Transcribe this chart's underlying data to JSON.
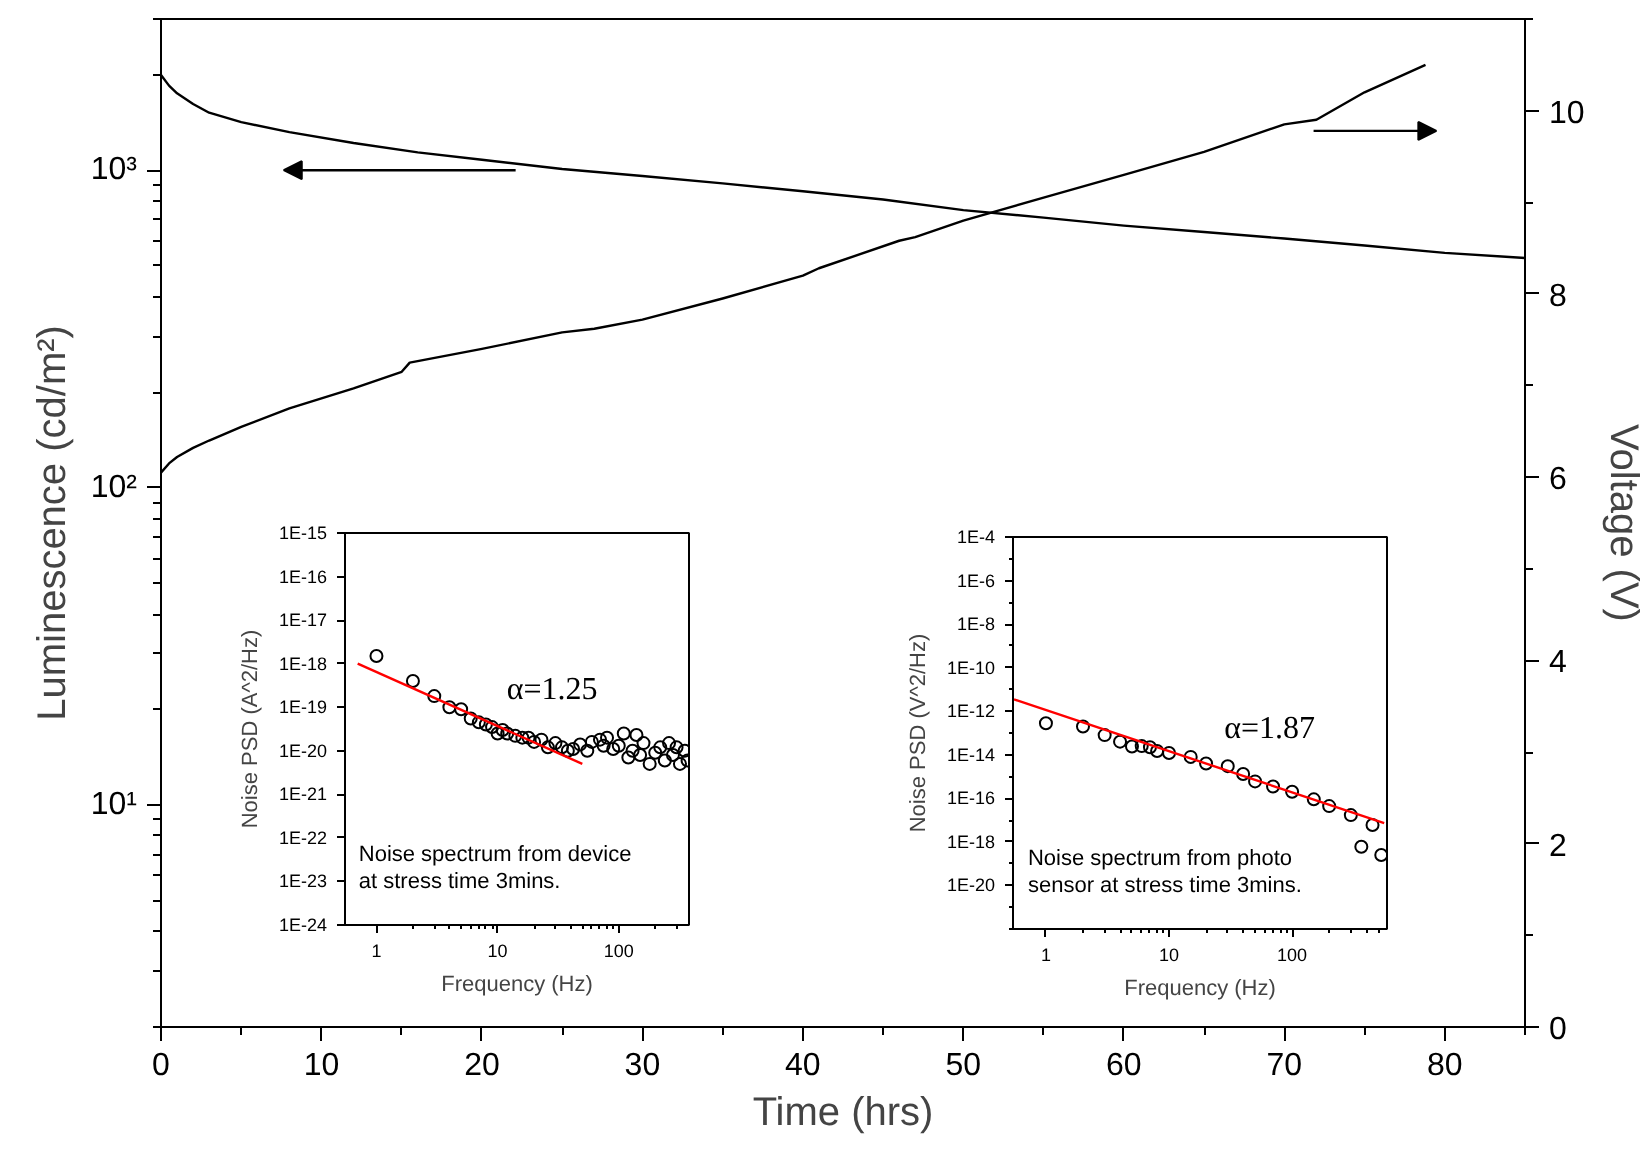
{
  "chart_data": [
    {
      "type": "line",
      "xlabel": "Time (hrs)",
      "ylabel": "Luminescence (cd/m²)",
      "y2label": "Voltage (V)",
      "log": "y",
      "xlim": [
        0,
        85
      ],
      "ylim": [
        2,
        3000
      ],
      "y2lim": [
        0,
        11
      ],
      "xticks": [
        0,
        {
          "value": 5,
          "label": null
        },
        10,
        {
          "value": 15,
          "label": null
        },
        20,
        {
          "value": 25,
          "label": null
        },
        30,
        {
          "value": 35,
          "label": null
        },
        40,
        {
          "value": 45,
          "label": null
        },
        50,
        {
          "value": 55,
          "label": null
        },
        60,
        {
          "value": 65,
          "label": null
        },
        70,
        {
          "value": 75,
          "label": null
        },
        80,
        {
          "value": 85,
          "label": null
        }
      ],
      "yticks": [
        {
          "value": 2,
          "label": null
        },
        {
          "value": 3,
          "label": null
        },
        {
          "value": 4,
          "label": null
        },
        {
          "value": 5,
          "label": null
        },
        {
          "value": 6,
          "label": null
        },
        {
          "value": 7,
          "label": null
        },
        {
          "value": 8,
          "label": null
        },
        {
          "value": 9,
          "label": null
        },
        {
          "value": 10,
          "label": "10¹"
        },
        {
          "value": 20,
          "label": null
        },
        {
          "value": 30,
          "label": null
        },
        {
          "value": 40,
          "label": null
        },
        {
          "value": 50,
          "label": null
        },
        {
          "value": 60,
          "label": null
        },
        {
          "value": 70,
          "label": null
        },
        {
          "value": 80,
          "label": null
        },
        {
          "value": 90,
          "label": null
        },
        {
          "value": 100,
          "label": "10²"
        },
        {
          "value": 200,
          "label": null
        },
        {
          "value": 300,
          "label": null
        },
        {
          "value": 400,
          "label": null
        },
        {
          "value": 500,
          "label": null
        },
        {
          "value": 600,
          "label": null
        },
        {
          "value": 700,
          "label": null
        },
        {
          "value": 800,
          "label": null
        },
        {
          "value": 900,
          "label": null
        },
        {
          "value": 1000,
          "label": "10³"
        },
        {
          "value": 2000,
          "label": null
        },
        {
          "value": 3000,
          "label": null
        }
      ],
      "y2ticks": [
        0,
        {
          "value": 1,
          "label": null
        },
        2,
        {
          "value": 3,
          "label": null
        },
        4,
        {
          "value": 5,
          "label": null
        },
        6,
        {
          "value": 7,
          "label": null
        },
        8,
        {
          "value": 9,
          "label": null
        },
        10,
        {
          "value": 11,
          "label": null
        }
      ],
      "grid": false,
      "series": [
        {
          "color": "#000000",
          "x": [
            0,
            0.5,
            1,
            2,
            3,
            5,
            8,
            12,
            16,
            20,
            25,
            30,
            35,
            40,
            45,
            50,
            55,
            60,
            65,
            70,
            75,
            80,
            85
          ],
          "values": [
            2000,
            1850,
            1750,
            1620,
            1520,
            1420,
            1320,
            1220,
            1140,
            1080,
            1010,
            960,
            910,
            860,
            810,
            750,
            710,
            670,
            640,
            610,
            580,
            550,
            530
          ]
        },
        {
          "color": "#000000",
          "axis": "y2",
          "x": [
            0,
            0.5,
            1,
            2,
            3,
            5,
            8,
            12,
            15,
            15.5,
            20,
            25,
            27,
            30,
            35,
            40,
            41,
            46,
            47,
            50,
            55,
            60,
            65,
            70,
            72,
            75,
            78.8
          ],
          "values": [
            6.05,
            6.15,
            6.22,
            6.32,
            6.4,
            6.55,
            6.75,
            6.97,
            7.15,
            7.25,
            7.4,
            7.58,
            7.62,
            7.72,
            7.95,
            8.2,
            8.28,
            8.58,
            8.62,
            8.8,
            9.05,
            9.3,
            9.55,
            9.85,
            9.9,
            10.2,
            10.5
          ]
        }
      ]
    },
    {
      "type": "scatter",
      "xlabel": "Frequency (Hz)",
      "ylabel": "Noise PSD (A^2/Hz)",
      "log": "xy",
      "xlim": [
        0.55,
        380
      ],
      "ylim": [
        1e-24,
        1e-15
      ],
      "xticks": [
        1,
        {
          "value": 2,
          "label": null
        },
        {
          "value": 3,
          "label": null
        },
        {
          "value": 4,
          "label": null
        },
        {
          "value": 5,
          "label": null
        },
        {
          "value": 6,
          "label": null
        },
        {
          "value": 7,
          "label": null
        },
        {
          "value": 8,
          "label": null
        },
        {
          "value": 9,
          "label": null
        },
        10,
        {
          "value": 20,
          "label": null
        },
        {
          "value": 30,
          "label": null
        },
        {
          "value": 40,
          "label": null
        },
        {
          "value": 50,
          "label": null
        },
        {
          "value": 60,
          "label": null
        },
        {
          "value": 70,
          "label": null
        },
        {
          "value": 80,
          "label": null
        },
        {
          "value": 90,
          "label": null
        },
        100,
        {
          "value": 200,
          "label": null
        },
        {
          "value": 300,
          "label": null
        }
      ],
      "yticks": [
        {
          "value": 1e-24,
          "label": "1E-24"
        },
        {
          "value": 1e-23,
          "label": "1E-23"
        },
        {
          "value": 1e-22,
          "label": "1E-22"
        },
        {
          "value": 1e-21,
          "label": "1E-21"
        },
        {
          "value": 1e-20,
          "label": "1E-20"
        },
        {
          "value": 1e-19,
          "label": "1E-19"
        },
        {
          "value": 1e-18,
          "label": "1E-18"
        },
        {
          "value": 1e-17,
          "label": "1E-17"
        },
        {
          "value": 1e-16,
          "label": "1E-16"
        },
        {
          "value": 1e-15,
          "label": "1E-15"
        }
      ],
      "grid": false,
      "annotations": [
        "α=1.25",
        "Noise spectrum from device\nat stress time 3mins."
      ],
      "series": [
        {
          "type": "scatter",
          "marker": "circle",
          "color": "#000000",
          "x": [
            1,
            2,
            3,
            4,
            5,
            6,
            7,
            8,
            9,
            10,
            11,
            12,
            14,
            16,
            18,
            20,
            23,
            26,
            30,
            34,
            38,
            42,
            48,
            55,
            60,
            70,
            75,
            80,
            90,
            100,
            110,
            120,
            130,
            140,
            150,
            160,
            180,
            200,
            220,
            240,
            260,
            280,
            300,
            320,
            350,
            370
          ],
          "values": [
            1.5e-18,
            4e-19,
            1.8e-19,
            1e-19,
            9e-20,
            5.5e-20,
            4.5e-20,
            4e-20,
            3.5e-20,
            2.5e-20,
            3e-20,
            2.5e-20,
            2.2e-20,
            2e-20,
            2e-20,
            1.6e-20,
            1.8e-20,
            1.2e-20,
            1.5e-20,
            1.2e-20,
            1e-20,
            1.1e-20,
            1.4e-20,
            1e-20,
            1.6e-20,
            1.8e-20,
            1.3e-20,
            2e-20,
            1.1e-20,
            1.3e-20,
            2.5e-20,
            7e-21,
            1e-20,
            2.3e-20,
            8e-21,
            1.5e-20,
            5e-21,
            9e-21,
            1.2e-20,
            6e-21,
            1.5e-20,
            8e-21,
            1.2e-20,
            5e-21,
            1e-20,
            6e-21
          ]
        },
        {
          "type": "line",
          "color": "#ff0000",
          "x": [
            0.7,
            50
          ],
          "values": [
            1e-18,
            5e-21
          ]
        }
      ]
    },
    {
      "type": "scatter",
      "xlabel": "Frequency (Hz)",
      "ylabel": "Noise PSD (V^2/Hz)",
      "log": "xy",
      "xlim": [
        0.54,
        590
      ],
      "ylim": [
        1e-22,
        0.0001
      ],
      "xticks": [
        1,
        {
          "value": 2,
          "label": null
        },
        {
          "value": 3,
          "label": null
        },
        {
          "value": 4,
          "label": null
        },
        {
          "value": 5,
          "label": null
        },
        {
          "value": 6,
          "label": null
        },
        {
          "value": 7,
          "label": null
        },
        {
          "value": 8,
          "label": null
        },
        {
          "value": 9,
          "label": null
        },
        10,
        {
          "value": 20,
          "label": null
        },
        {
          "value": 30,
          "label": null
        },
        {
          "value": 40,
          "label": null
        },
        {
          "value": 50,
          "label": null
        },
        {
          "value": 60,
          "label": null
        },
        {
          "value": 70,
          "label": null
        },
        {
          "value": 80,
          "label": null
        },
        {
          "value": 90,
          "label": null
        },
        100,
        {
          "value": 200,
          "label": null
        },
        {
          "value": 300,
          "label": null
        },
        {
          "value": 400,
          "label": null
        },
        {
          "value": 500,
          "label": null
        }
      ],
      "yticks": [
        {
          "value": 1e-22,
          "label": null
        },
        {
          "value": 1e-21,
          "label": null
        },
        {
          "value": 1e-20,
          "label": "1E-20"
        },
        {
          "value": 1e-19,
          "label": null
        },
        {
          "value": 1e-18,
          "label": "1E-18"
        },
        {
          "value": 1e-17,
          "label": null
        },
        {
          "value": 1e-16,
          "label": "1E-16"
        },
        {
          "value": 1e-15,
          "label": null
        },
        {
          "value": 1e-14,
          "label": "1E-14"
        },
        {
          "value": 1e-13,
          "label": null
        },
        {
          "value": 1e-12,
          "label": "1E-12"
        },
        {
          "value": 1e-11,
          "label": null
        },
        {
          "value": 1e-10,
          "label": "1E-10"
        },
        {
          "value": 1e-09,
          "label": null
        },
        {
          "value": 1e-08,
          "label": "1E-8"
        },
        {
          "value": 1e-07,
          "label": null
        },
        {
          "value": 1e-06,
          "label": "1E-6"
        },
        {
          "value": 1e-05,
          "label": null
        },
        {
          "value": 0.0001,
          "label": "1E-4"
        }
      ],
      "grid": false,
      "annotations": [
        "α=1.87",
        "Noise spectrum from photo\nsensor at stress time 3mins."
      ],
      "series": [
        {
          "type": "scatter",
          "marker": "circle",
          "color": "#000000",
          "x": [
            1,
            2,
            3,
            4,
            5,
            6,
            7,
            8,
            10,
            15,
            20,
            30,
            40,
            50,
            70,
            100,
            150,
            200,
            300,
            365,
            450,
            530
          ],
          "values": [
            2.8e-13,
            2e-13,
            8e-14,
            4e-14,
            2.4e-14,
            2.5e-14,
            2.2e-14,
            1.5e-14,
            1.2e-14,
            8e-15,
            4e-15,
            3e-15,
            1.3e-15,
            6e-16,
            3.5e-16,
            2e-16,
            9e-17,
            4.4e-17,
            1.7e-17,
            6e-19,
            6e-18,
            2.5e-19
          ]
        },
        {
          "type": "line",
          "color": "#ff0000",
          "x": [
            0.55,
            560
          ],
          "values": [
            3.5e-12,
            7.3e-18
          ]
        }
      ]
    }
  ]
}
